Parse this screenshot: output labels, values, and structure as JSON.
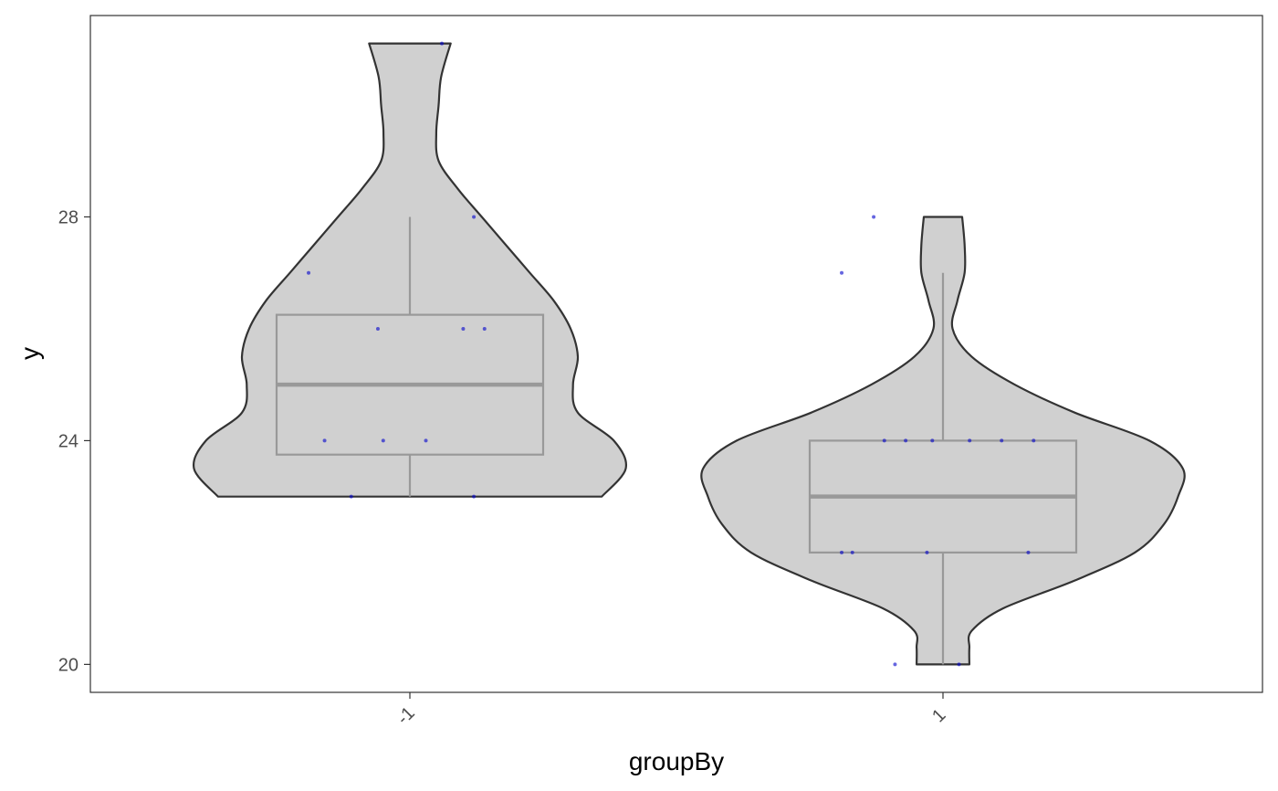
{
  "chart_data": {
    "type": "violin",
    "xlabel": "groupBy",
    "ylabel": "y",
    "categories": [
      "-1",
      "1"
    ],
    "ylim": [
      19.5,
      31.6
    ],
    "y_ticks": [
      20,
      24,
      28
    ],
    "grid": false,
    "legend": "none",
    "groups": [
      {
        "category": "-1",
        "box": {
          "whisker_low": 23,
          "q1": 23.75,
          "median": 25,
          "q3": 26.25,
          "whisker_high": 28
        },
        "violin_range": [
          23,
          31.1
        ],
        "density_profile": [
          [
            23.0,
            0.8
          ],
          [
            23.5,
            0.9
          ],
          [
            24.0,
            0.85
          ],
          [
            24.5,
            0.7
          ],
          [
            25.0,
            0.68
          ],
          [
            25.5,
            0.7
          ],
          [
            26.0,
            0.67
          ],
          [
            26.5,
            0.6
          ],
          [
            27.0,
            0.5
          ],
          [
            27.5,
            0.4
          ],
          [
            28.0,
            0.3
          ],
          [
            28.5,
            0.2
          ],
          [
            29.0,
            0.12
          ],
          [
            29.5,
            0.11
          ],
          [
            30.0,
            0.12
          ],
          [
            30.5,
            0.13
          ],
          [
            31.1,
            0.17
          ]
        ],
        "points": [
          {
            "x": 0.06,
            "y": 31.1
          },
          {
            "x": 0.12,
            "y": 28
          },
          {
            "x": -0.19,
            "y": 27
          },
          {
            "x": -0.06,
            "y": 26
          },
          {
            "x": 0.1,
            "y": 26
          },
          {
            "x": 0.14,
            "y": 26
          },
          {
            "x": -0.16,
            "y": 24
          },
          {
            "x": -0.05,
            "y": 24
          },
          {
            "x": 0.03,
            "y": 24
          },
          {
            "x": -0.11,
            "y": 23
          },
          {
            "x": 0.12,
            "y": 23
          }
        ]
      },
      {
        "category": "1",
        "box": {
          "whisker_low": 20,
          "q1": 22,
          "median": 23,
          "q3": 24,
          "whisker_high": 27
        },
        "violin_range": [
          20,
          28
        ],
        "density_profile": [
          [
            20.0,
            0.11
          ],
          [
            20.3,
            0.11
          ],
          [
            20.6,
            0.12
          ],
          [
            21.0,
            0.25
          ],
          [
            21.5,
            0.55
          ],
          [
            22.0,
            0.8
          ],
          [
            22.5,
            0.92
          ],
          [
            23.0,
            0.98
          ],
          [
            23.5,
            1.0
          ],
          [
            24.0,
            0.86
          ],
          [
            24.5,
            0.55
          ],
          [
            25.0,
            0.3
          ],
          [
            25.5,
            0.12
          ],
          [
            26.0,
            0.04
          ],
          [
            26.5,
            0.06
          ],
          [
            27.0,
            0.09
          ],
          [
            27.5,
            0.09
          ],
          [
            28.0,
            0.08
          ]
        ],
        "points": [
          {
            "x": -0.19,
            "y": 27
          },
          {
            "x": -0.13,
            "y": 28
          },
          {
            "x": -0.11,
            "y": 24
          },
          {
            "x": -0.07,
            "y": 24
          },
          {
            "x": -0.02,
            "y": 24
          },
          {
            "x": 0.05,
            "y": 24
          },
          {
            "x": 0.11,
            "y": 24
          },
          {
            "x": 0.17,
            "y": 24
          },
          {
            "x": -0.19,
            "y": 22
          },
          {
            "x": -0.17,
            "y": 22
          },
          {
            "x": -0.03,
            "y": 22
          },
          {
            "x": 0.16,
            "y": 22
          },
          {
            "x": -0.09,
            "y": 20
          },
          {
            "x": 0.03,
            "y": 20
          }
        ]
      }
    ],
    "colors": {
      "violin_fill": "#d0d0d0",
      "violin_stroke": "#333333",
      "box_stroke": "#999999",
      "point_color": "#0000cc",
      "panel_border": "#333333"
    }
  }
}
